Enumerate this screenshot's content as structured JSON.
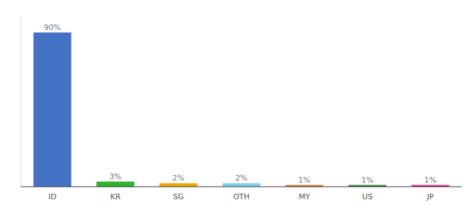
{
  "chart_data": {
    "type": "bar",
    "categories": [
      "ID",
      "KR",
      "SG",
      "OTH",
      "MY",
      "US",
      "JP"
    ],
    "values": [
      90,
      3,
      2,
      2,
      1,
      1,
      1
    ],
    "value_labels": [
      "90%",
      "3%",
      "2%",
      "2%",
      "1%",
      "1%",
      "1%"
    ],
    "colors": [
      "#4472c4",
      "#2db52d",
      "#f0a500",
      "#7ecfee",
      "#c47a2e",
      "#2e7d32",
      "#e91e8c"
    ],
    "ylim": [
      0,
      100
    ],
    "grid": false,
    "data_labels": true,
    "tick_labels": "x"
  }
}
